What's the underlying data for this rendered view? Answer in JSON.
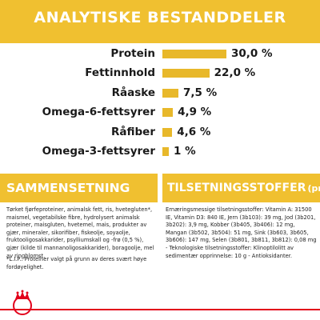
{
  "header": {
    "title": "ANALYTISKE BESTANDDELER"
  },
  "chart_data": {
    "type": "bar",
    "categories": [
      "Protein",
      "Fettinnhold",
      "Råaske",
      "Omega-6-fettsyrer",
      "Råfiber",
      "Omega-3-fettsyrer"
    ],
    "values": [
      30.0,
      22.0,
      7.5,
      4.9,
      4.6,
      1.0
    ],
    "value_labels": [
      "30,0 %",
      "22,0 %",
      "7,5 %",
      "4,9 %",
      "4,6 %",
      "1 %"
    ],
    "xlim": [
      0,
      30
    ],
    "bar_color": "#e8b82a"
  },
  "composition": {
    "title": "SAMMENSETNING",
    "text": "Tørket fjørfeproteiner, animalsk fett, ris, hvetegluten*, maismel, vegetabilske fibre, hydrolysert animalsk proteiner, maisgluten, hvetemel, mais, produkter av gjær, mineraler, sikorifiber, fiskeolje, soyaolje, fruktooligosakkarider, psylliumskall og -frø (0,5 %), gjær (kilde til mannanoligosakkarider), boragoolje, mel av ringblomst.",
    "footnote": "*L.I.P.: Proteiner valgt på grunn av deres svært høye fordøyelighet."
  },
  "additives": {
    "title": "TILSETNINGSSTOFFER",
    "unit": "(pr. kg)",
    "text": "Ernæringsmessige tilsetningsstoffer: Vitamin A: 31500 IE, Vitamin D3: 840 IE, Jern (3b103): 39 mg, Jod (3b201, 3b202): 3,9 mg, Kobber (3b405, 3b406): 12 mg, Mangan (3b502, 3b504): 51 mg, Sink (3b603, 3b605, 3b606): 147 mg, Selen (3b801, 3b811, 3b812): 0,08 mg - Teknologiske tilsetningsstoffer: Klinoptilolitt av sedimentær opprinnelse: 10 g - Antioksidanter."
  },
  "brand": {
    "logo_name": "royal-canin-crown-logo",
    "accent_color": "#e2001a"
  }
}
